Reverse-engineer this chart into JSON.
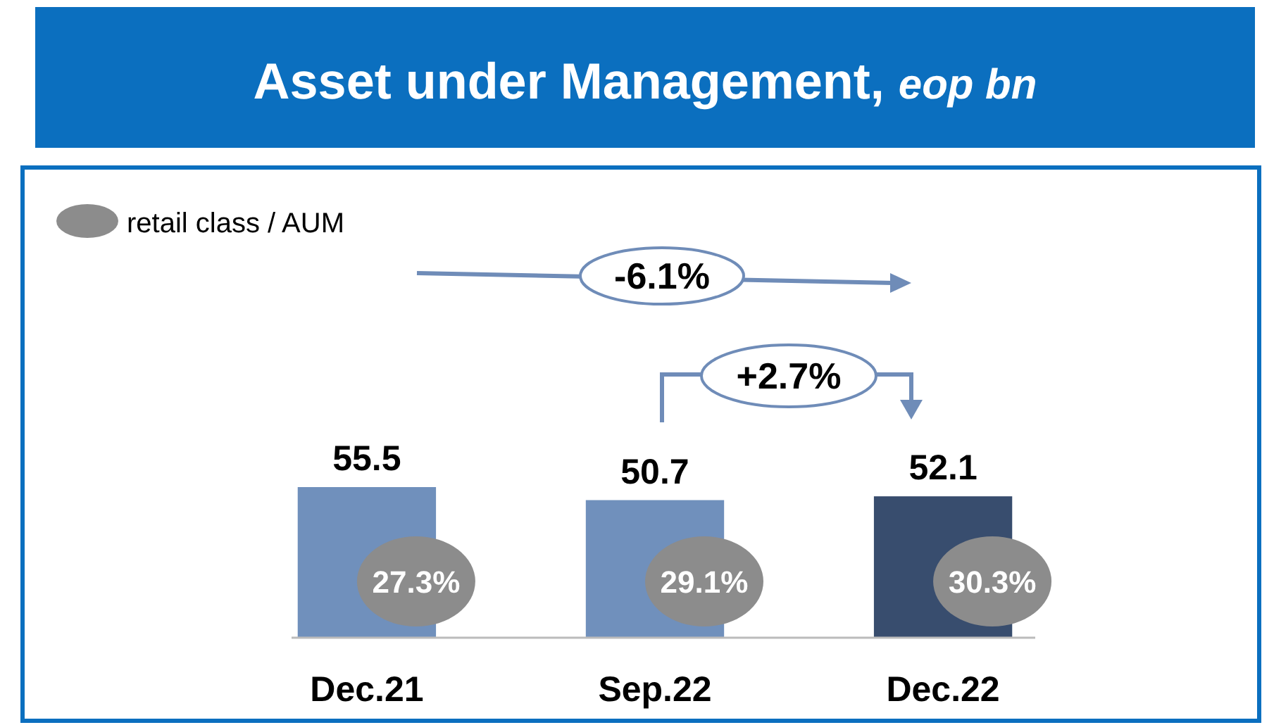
{
  "chart_data": {
    "type": "bar",
    "title": "Asset under Management,",
    "subtitle": "eop bn",
    "categories": [
      "Dec.21",
      "Sep.22",
      "Dec.22"
    ],
    "values": [
      55.5,
      50.7,
      52.1
    ],
    "colors": [
      "#7090bc",
      "#7090bc",
      "#384d6e"
    ],
    "data_labels": true,
    "annotations": [
      "retail class / AUM",
      "-6.1%",
      "+2.7%",
      "27.3%",
      "29.1%",
      "30.3%"
    ]
  }
}
